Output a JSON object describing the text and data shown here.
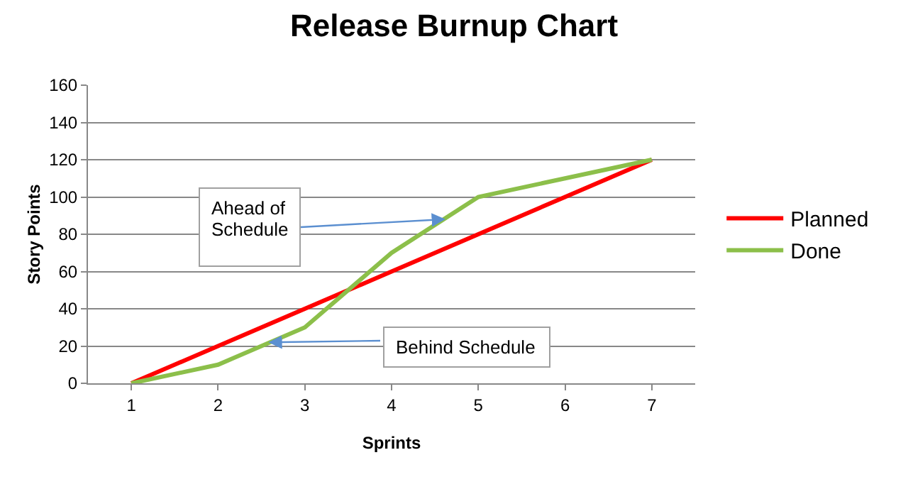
{
  "chart_data": {
    "type": "line",
    "title": "Release Burnup Chart",
    "xlabel": "Sprints",
    "ylabel": "Story Points",
    "x": [
      1,
      2,
      3,
      4,
      5,
      6,
      7
    ],
    "xlim": [
      0.5,
      7.5
    ],
    "xticks": [
      1,
      2,
      3,
      4,
      5,
      6,
      7
    ],
    "ylim": [
      0,
      160
    ],
    "yticks": [
      0,
      20,
      40,
      60,
      80,
      100,
      120,
      140,
      160
    ],
    "grid": "y",
    "legend": "right",
    "marker": "none",
    "line_style": "solid",
    "series": [
      {
        "name": "Planned",
        "color": "#ff0000",
        "values": [
          0,
          20,
          40,
          60,
          80,
          100,
          120
        ]
      },
      {
        "name": "Done",
        "color": "#8cbf4a",
        "values": [
          0,
          10,
          30,
          70,
          100,
          110,
          120
        ]
      }
    ],
    "annotations": [
      {
        "text": "Ahead of Schedule",
        "x": 4.6,
        "y": 88
      },
      {
        "text": "Behind Schedule",
        "x": 2.6,
        "y": 22
      }
    ]
  }
}
